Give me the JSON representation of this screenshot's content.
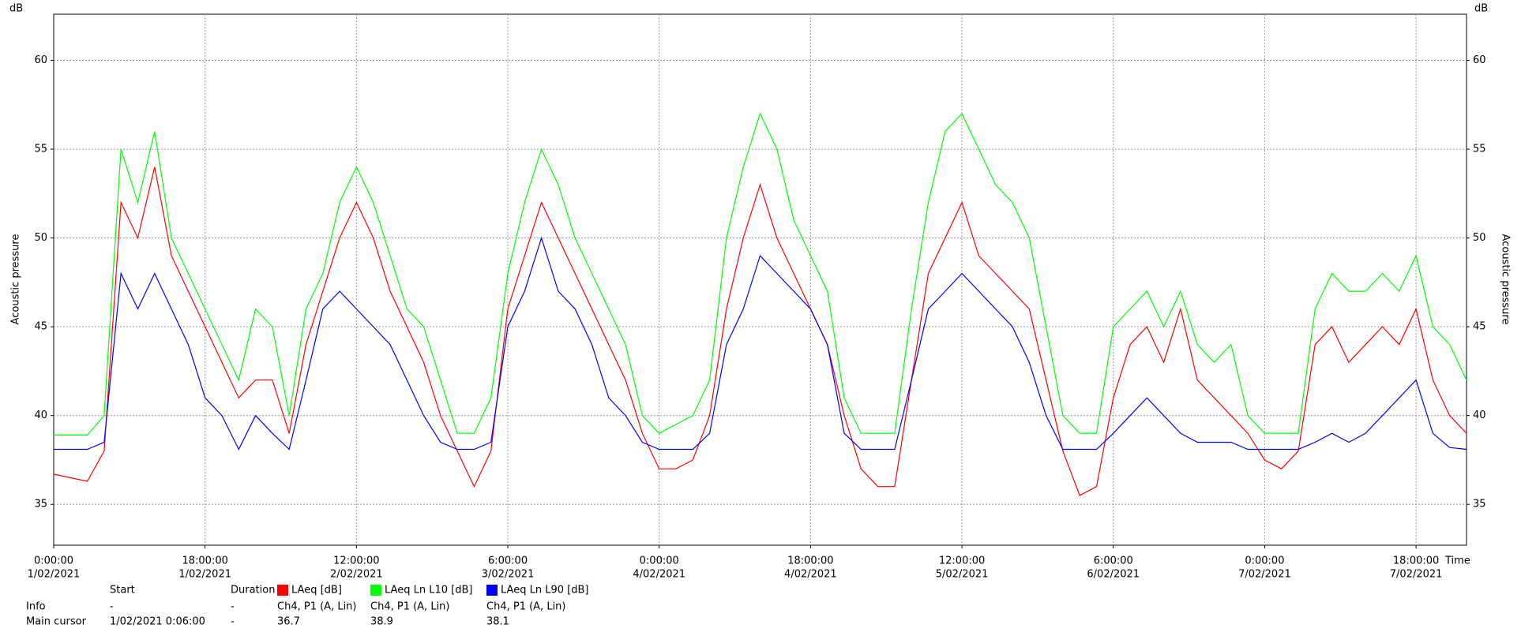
{
  "chart_data": {
    "type": "line",
    "y_unit": "dB",
    "y2_unit": "dB",
    "ylabel": "Acoustic pressure",
    "y2label": "Acoustic pressure",
    "xlabel": "Time",
    "grid": true,
    "xlim": [
      0,
      168
    ],
    "xticks": [
      {
        "value": 0,
        "label": "0:00:00",
        "date": "1/02/2021"
      },
      {
        "value": 18,
        "label": "18:00:00",
        "date": "1/02/2021"
      },
      {
        "value": 36,
        "label": "12:00:00",
        "date": "2/02/2021"
      },
      {
        "value": 54,
        "label": "6:00:00",
        "date": "3/02/2021"
      },
      {
        "value": 72,
        "label": "0:00:00",
        "date": "4/02/2021"
      },
      {
        "value": 90,
        "label": "18:00:00",
        "date": "4/02/2021"
      },
      {
        "value": 108,
        "label": "12:00:00",
        "date": "5/02/2021"
      },
      {
        "value": 126,
        "label": "6:00:00",
        "date": "6/02/2021"
      },
      {
        "value": 144,
        "label": "0:00:00",
        "date": "7/02/2021"
      },
      {
        "value": 162,
        "label": "18:00:00",
        "date": "7/02/2021"
      }
    ],
    "ylim": [
      32.7,
      62.6
    ],
    "yticks": [
      35,
      40,
      45,
      50,
      55,
      60
    ],
    "y2lim": [
      32.7,
      62.6
    ],
    "y2ticks": [
      35,
      40,
      45,
      50,
      55,
      60
    ],
    "x": [
      0,
      2,
      4,
      6,
      8,
      10,
      12,
      14,
      16,
      18,
      20,
      22,
      24,
      26,
      28,
      30,
      32,
      34,
      36,
      38,
      40,
      42,
      44,
      46,
      48,
      50,
      52,
      54,
      56,
      58,
      60,
      62,
      64,
      66,
      68,
      70,
      72,
      74,
      76,
      78,
      80,
      82,
      84,
      86,
      88,
      90,
      92,
      94,
      96,
      98,
      100,
      102,
      104,
      106,
      108,
      110,
      112,
      114,
      116,
      118,
      120,
      122,
      124,
      126,
      128,
      130,
      132,
      134,
      136,
      138,
      140,
      142,
      144,
      146,
      148,
      150,
      152,
      154,
      156,
      158,
      160,
      162,
      164,
      166,
      168
    ],
    "series": [
      {
        "name": "LAeq [dB]",
        "color": "#ff0000",
        "values": [
          36.7,
          36.5,
          36.3,
          38,
          52,
          50,
          54,
          49,
          47,
          45,
          43,
          41,
          42,
          42,
          39,
          44,
          47,
          50,
          52,
          50,
          47,
          45,
          43,
          40,
          38,
          36,
          38,
          46,
          49,
          52,
          50,
          48,
          46,
          44,
          42,
          39,
          37,
          37,
          37.5,
          40,
          46,
          50,
          53,
          50,
          48,
          46,
          44,
          40,
          37,
          36,
          36,
          42,
          48,
          50,
          52,
          49,
          48,
          47,
          46,
          42,
          38,
          35.5,
          36,
          41,
          44,
          45,
          43,
          46,
          42,
          41,
          40,
          39,
          37.5,
          37,
          38,
          44,
          45,
          43,
          44,
          45,
          44,
          46,
          42,
          40,
          39
        ]
      },
      {
        "name": "LAeq Ln L10 [dB]",
        "color": "#00ff00",
        "values": [
          38.9,
          38.9,
          38.9,
          40,
          55,
          52,
          56,
          50,
          48,
          46,
          44,
          42,
          46,
          45,
          40,
          46,
          48,
          52,
          54,
          52,
          49,
          46,
          45,
          42,
          39,
          39,
          41,
          48,
          52,
          55,
          53,
          50,
          48,
          46,
          44,
          40,
          39,
          39.5,
          40,
          42,
          50,
          54,
          57,
          55,
          51,
          49,
          47,
          41,
          39,
          39,
          39,
          46,
          52,
          56,
          57,
          55,
          53,
          52,
          50,
          45,
          40,
          39,
          39,
          45,
          46,
          47,
          45,
          47,
          44,
          43,
          44,
          40,
          39,
          39,
          39,
          46,
          48,
          47,
          47,
          48,
          47,
          49,
          45,
          44,
          42
        ]
      },
      {
        "name": "LAeq Ln L90 [dB]",
        "color": "#0000ff",
        "values": [
          38.1,
          38.1,
          38.1,
          38.5,
          48,
          46,
          48,
          46,
          44,
          41,
          40,
          38.1,
          40,
          39,
          38.1,
          42,
          46,
          47,
          46,
          45,
          44,
          42,
          40,
          38.5,
          38.1,
          38.1,
          38.5,
          45,
          47,
          50,
          47,
          46,
          44,
          41,
          40,
          38.5,
          38.1,
          38.1,
          38.1,
          39,
          44,
          46,
          49,
          48,
          47,
          46,
          44,
          39,
          38.1,
          38.1,
          38.1,
          42,
          46,
          47,
          48,
          47,
          46,
          45,
          43,
          40,
          38.1,
          38.1,
          38.1,
          39,
          40,
          41,
          40,
          39,
          38.5,
          38.5,
          38.5,
          38.1,
          38.1,
          38.1,
          38.1,
          38.5,
          39,
          38.5,
          39,
          40,
          41,
          42,
          39,
          38.2,
          38.1
        ]
      }
    ]
  },
  "info_table": {
    "headers": {
      "start": "Start",
      "duration": "Duration"
    },
    "rows": [
      {
        "label": "Info",
        "start": "-",
        "duration": "-",
        "cells": [
          "Ch4, P1 (A, Lin)",
          "Ch4, P1 (A, Lin)",
          "Ch4, P1 (A, Lin)"
        ]
      },
      {
        "label": "Main cursor",
        "start": "1/02/2021 0:06:00",
        "duration": "-",
        "cells": [
          "36.7",
          "38.9",
          "38.1"
        ]
      }
    ]
  }
}
